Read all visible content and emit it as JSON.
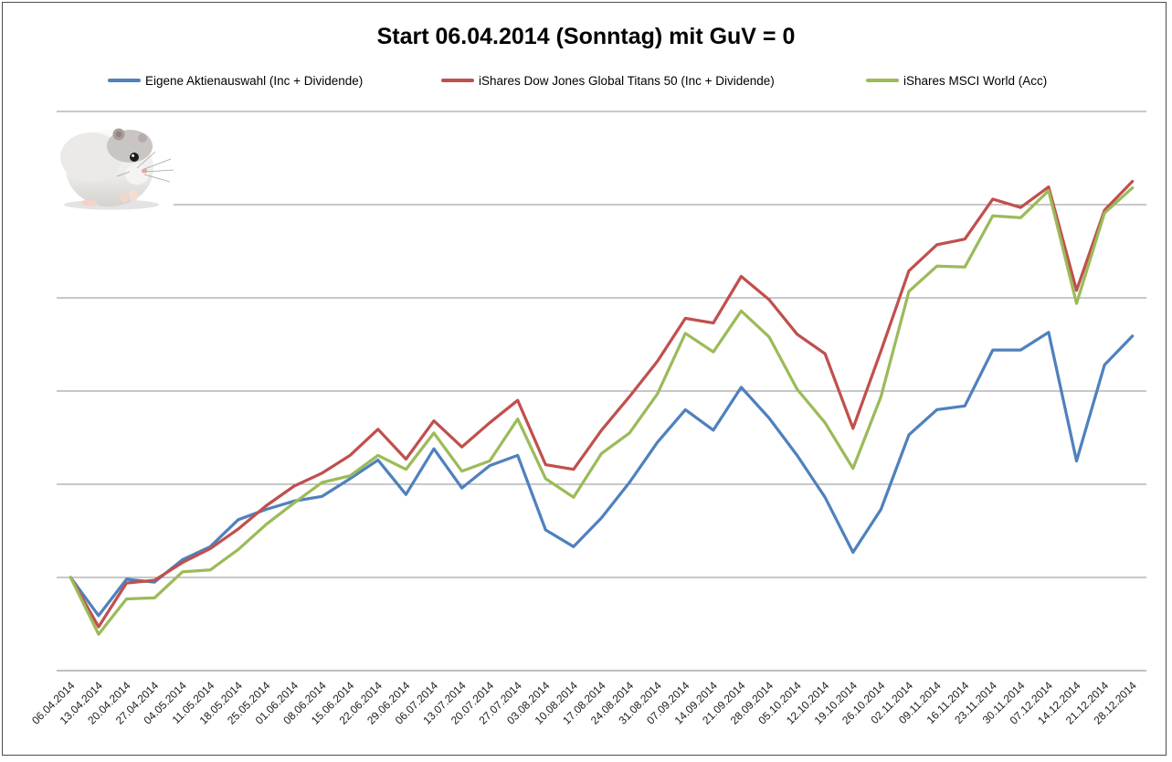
{
  "title": "Start 06.04.2014 (Sonntag) mit GuV = 0",
  "chart_data": {
    "type": "line",
    "x": [
      "06.04.2014",
      "13.04.2014",
      "20.04.2014",
      "27.04.2014",
      "04.05.2014",
      "11.05.2014",
      "18.05.2014",
      "25.05.2014",
      "01.06.2014",
      "08.06.2014",
      "15.06.2014",
      "22.06.2014",
      "29.06.2014",
      "06.07.2014",
      "13.07.2014",
      "20.07.2014",
      "27.07.2014",
      "03.08.2014",
      "10.08.2014",
      "17.08.2014",
      "24.08.2014",
      "31.08.2014",
      "07.09.2014",
      "14.09.2014",
      "21.09.2014",
      "28.09.2014",
      "05.10.2014",
      "12.10.2014",
      "19.10.2014",
      "26.10.2014",
      "02.11.2014",
      "09.11.2014",
      "16.11.2014",
      "23.11.2014",
      "30.11.2014",
      "07.12.2014",
      "14.12.2014",
      "21.12.2014",
      "28.12.2014"
    ],
    "series": [
      {
        "name": "Eigene Aktienauswahl (Inc + Dividende)",
        "color": "#4F81BD",
        "values": [
          0,
          -0.41,
          -0.02,
          -0.05,
          0.19,
          0.33,
          0.62,
          0.73,
          0.82,
          0.87,
          1.06,
          1.26,
          0.89,
          1.38,
          0.96,
          1.2,
          1.31,
          0.51,
          0.33,
          0.64,
          1.02,
          1.45,
          1.8,
          1.58,
          2.04,
          1.71,
          1.31,
          0.86,
          0.27,
          0.73,
          1.53,
          1.8,
          1.84,
          2.44,
          2.44,
          2.63,
          1.25,
          2.28,
          2.59
        ]
      },
      {
        "name": "iShares Dow Jones Global Titans 50 (Inc + Dividende)",
        "color": "#C0504D",
        "values": [
          0,
          -0.53,
          -0.06,
          -0.03,
          0.16,
          0.31,
          0.52,
          0.77,
          0.98,
          1.12,
          1.31,
          1.59,
          1.27,
          1.68,
          1.4,
          1.66,
          1.9,
          1.21,
          1.16,
          1.58,
          1.94,
          2.32,
          2.78,
          2.73,
          3.23,
          2.98,
          2.61,
          2.4,
          1.6,
          2.43,
          3.29,
          3.57,
          3.63,
          4.06,
          3.97,
          4.19,
          3.08,
          3.94,
          4.25
        ]
      },
      {
        "name": "iShares MSCI World (Acc)",
        "color": "#9BBB59",
        "values": [
          0,
          -0.61,
          -0.23,
          -0.22,
          0.06,
          0.08,
          0.3,
          0.57,
          0.8,
          1.02,
          1.09,
          1.31,
          1.16,
          1.55,
          1.14,
          1.25,
          1.7,
          1.06,
          0.86,
          1.33,
          1.55,
          1.97,
          2.62,
          2.42,
          2.86,
          2.58,
          2.02,
          1.66,
          1.17,
          1.94,
          3.07,
          3.34,
          3.33,
          3.88,
          3.86,
          4.15,
          2.94,
          3.91,
          4.18
        ]
      }
    ],
    "title": "Start 06.04.2014 (Sonntag) mit GuV = 0",
    "xlabel": "",
    "ylabel": "",
    "ylim": [
      -1,
      5
    ],
    "gridline_step": 1,
    "grid": "horizontal",
    "y_axis_labels_visible": false,
    "legend_position": "top",
    "x_label_rotation_deg": -45
  },
  "decoration": {
    "hamster_photo": "white dwarf hamster photo, top-left of plot area"
  },
  "colors": {
    "gridline": "#919191",
    "axis_line": "#808080",
    "frame_border": "#4d4d4d",
    "label_text": "#1a1a1a"
  }
}
